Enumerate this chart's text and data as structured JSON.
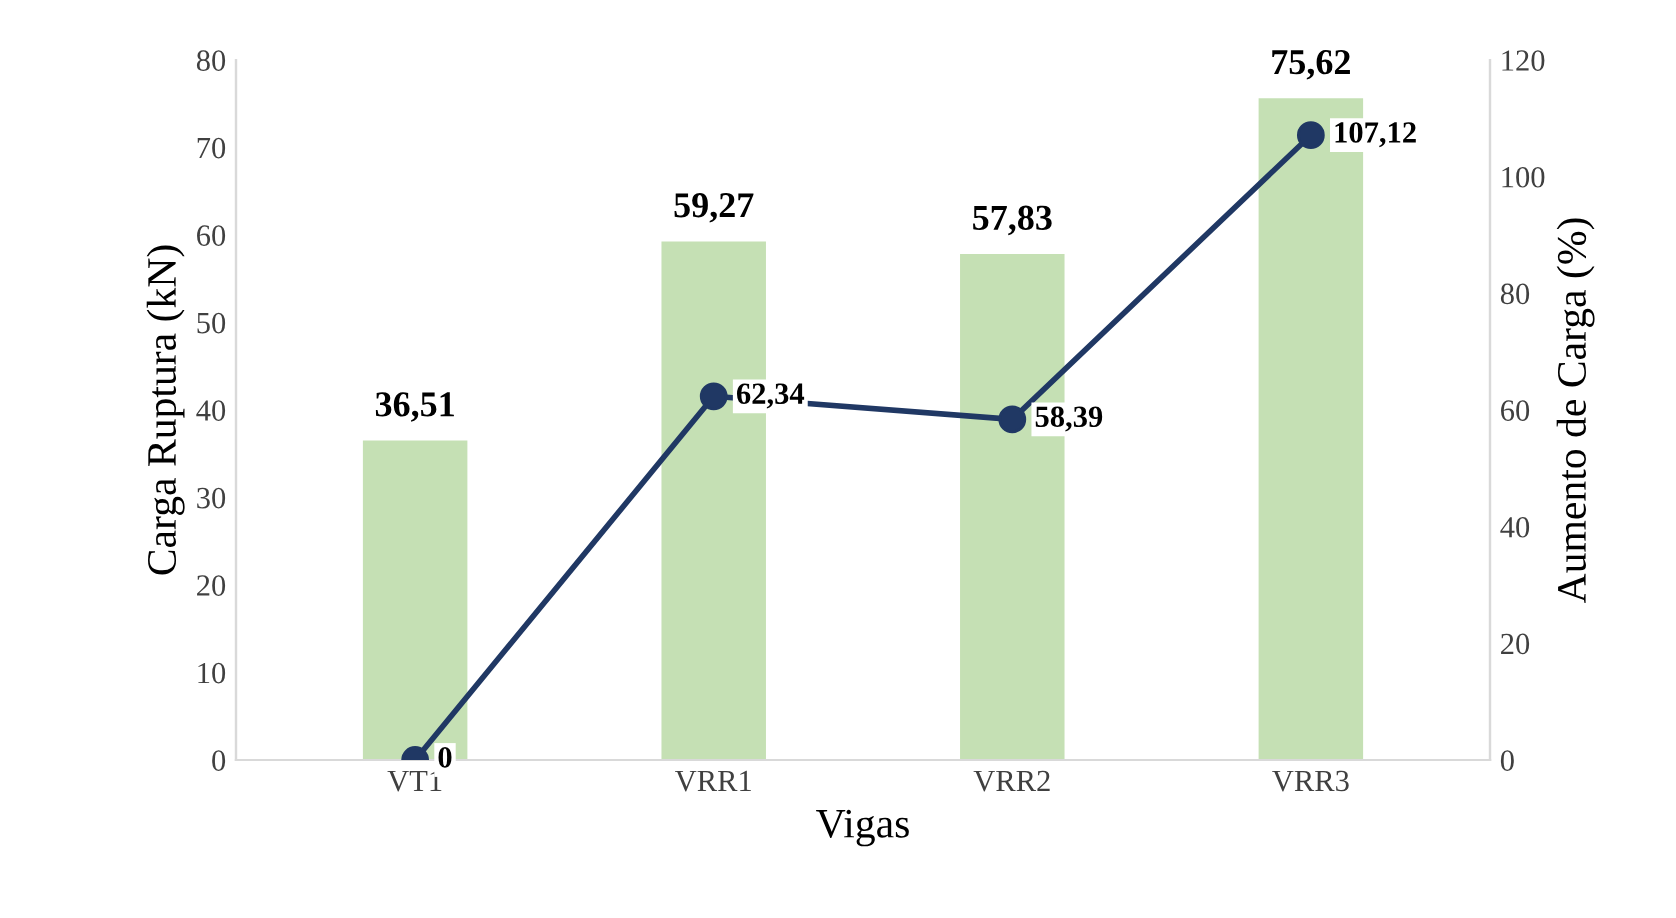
{
  "chart_data": {
    "type": "bar",
    "xlabel": "Vigas",
    "ylabel": "Carga Ruptura (kN)",
    "y2label": "Aumento de Carga (%)",
    "categories": [
      "VT1",
      "VRR1",
      "VRR2",
      "VRR3"
    ],
    "series": [
      {
        "color": "#c5e0b4",
        "values": [
          36.51,
          59.27,
          57.83,
          75.62
        ],
        "value_labels": [
          "36,51",
          "59,27",
          "57,83",
          "75,62"
        ]
      },
      {
        "type": "line",
        "axis": "y2",
        "color": "#203864",
        "marker": "circle",
        "line_style": "solid",
        "values": [
          0,
          62.34,
          58.39,
          107.12
        ],
        "value_labels": [
          "0",
          "62,34",
          "58,39",
          "107,12"
        ]
      }
    ],
    "ylim": [
      0,
      80
    ],
    "yticks": [
      0,
      10,
      20,
      30,
      40,
      50,
      60,
      70,
      80
    ],
    "y2lim": [
      0,
      120
    ],
    "y2ticks": [
      0,
      20,
      40,
      60,
      80,
      100,
      120
    ],
    "grid": false,
    "legend": false
  }
}
